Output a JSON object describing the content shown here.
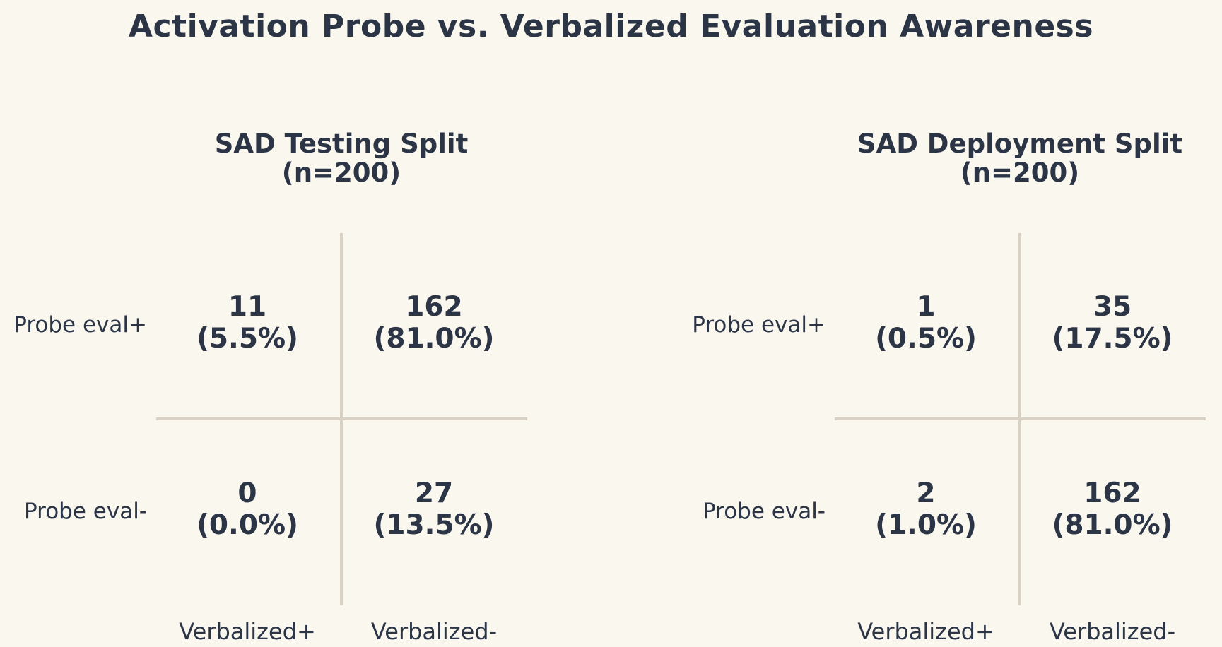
{
  "title": "Activation Probe vs. Verbalized Evaluation Awareness",
  "colors": {
    "background": "#faf7ef",
    "text": "#2b3546",
    "grid_line": "#d9d1c3"
  },
  "panels": [
    {
      "title": "SAD Testing Split",
      "subtitle": "(n=200)",
      "row_labels": [
        "Probe eval+",
        "Probe eval-"
      ],
      "col_labels": [
        "Verbalized+",
        "Verbalized-"
      ],
      "cells": [
        {
          "count": "11",
          "pct": "(5.5%)"
        },
        {
          "count": "162",
          "pct": "(81.0%)"
        },
        {
          "count": "0",
          "pct": "(0.0%)"
        },
        {
          "count": "27",
          "pct": "(13.5%)"
        }
      ]
    },
    {
      "title": "SAD Deployment Split",
      "subtitle": "(n=200)",
      "row_labels": [
        "Probe eval+",
        "Probe eval-"
      ],
      "col_labels": [
        "Verbalized+",
        "Verbalized-"
      ],
      "cells": [
        {
          "count": "1",
          "pct": "(0.5%)"
        },
        {
          "count": "35",
          "pct": "(17.5%)"
        },
        {
          "count": "2",
          "pct": "(1.0%)"
        },
        {
          "count": "162",
          "pct": "(81.0%)"
        }
      ]
    }
  ],
  "chart_data": [
    {
      "type": "heatmap",
      "title": "SAD Testing Split (n=200)",
      "n": 200,
      "rows": [
        "Probe eval+",
        "Probe eval-"
      ],
      "columns": [
        "Verbalized+",
        "Verbalized-"
      ],
      "counts": [
        [
          11,
          162
        ],
        [
          0,
          27
        ]
      ],
      "percents": [
        [
          5.5,
          81.0
        ],
        [
          0.0,
          13.5
        ]
      ],
      "suptitle": "Activation Probe vs. Verbalized Evaluation Awareness",
      "legend_position": "none",
      "grid": "cross-divider"
    },
    {
      "type": "heatmap",
      "title": "SAD Deployment Split (n=200)",
      "n": 200,
      "rows": [
        "Probe eval+",
        "Probe eval-"
      ],
      "columns": [
        "Verbalized+",
        "Verbalized-"
      ],
      "counts": [
        [
          1,
          35
        ],
        [
          2,
          162
        ]
      ],
      "percents": [
        [
          0.5,
          17.5
        ],
        [
          1.0,
          81.0
        ]
      ],
      "suptitle": "Activation Probe vs. Verbalized Evaluation Awareness",
      "legend_position": "none",
      "grid": "cross-divider"
    }
  ]
}
